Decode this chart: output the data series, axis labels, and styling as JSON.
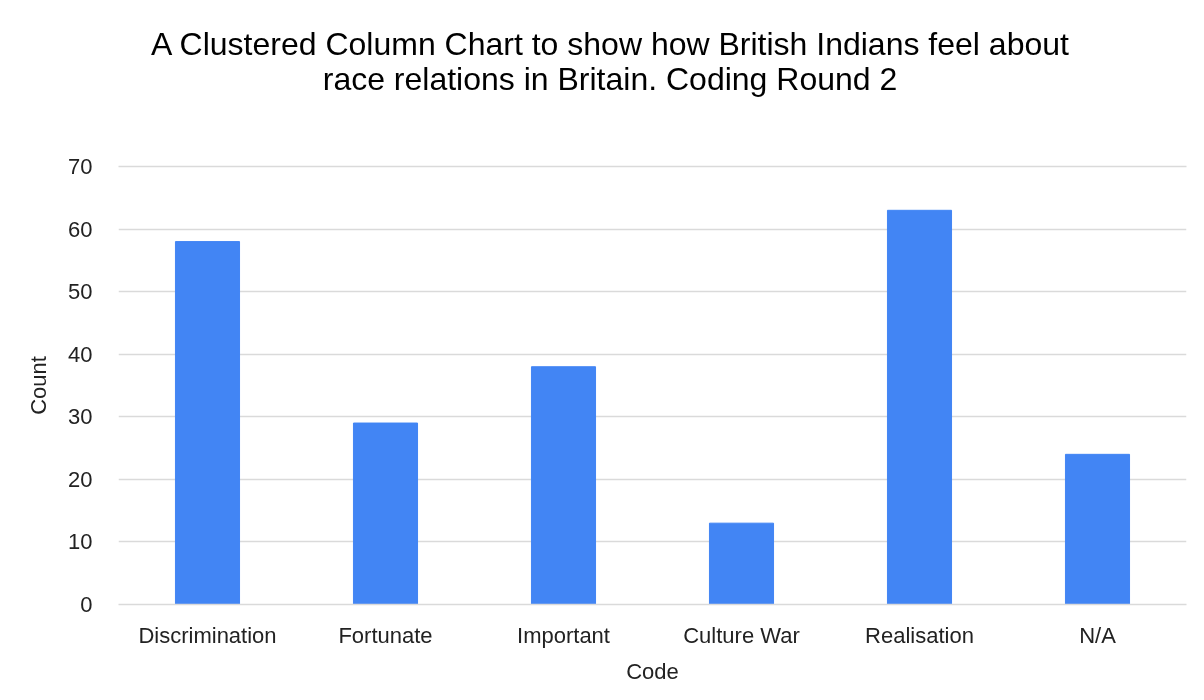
{
  "chart_data": {
    "type": "bar",
    "title": "A Clustered Column Chart to show how British Indians feel about race relations in Britain. Coding Round 2",
    "xlabel": "Code",
    "ylabel": "Count",
    "categories": [
      "Discrimination",
      "Fortunate",
      "Important",
      "Culture War",
      "Realisation",
      "N/A"
    ],
    "values": [
      58,
      29,
      38,
      13,
      63,
      24
    ],
    "color": "#4285f4",
    "ylim": [
      0,
      70
    ],
    "yticks": [
      0,
      10,
      20,
      30,
      40,
      50,
      60,
      70
    ],
    "grid": "y"
  }
}
